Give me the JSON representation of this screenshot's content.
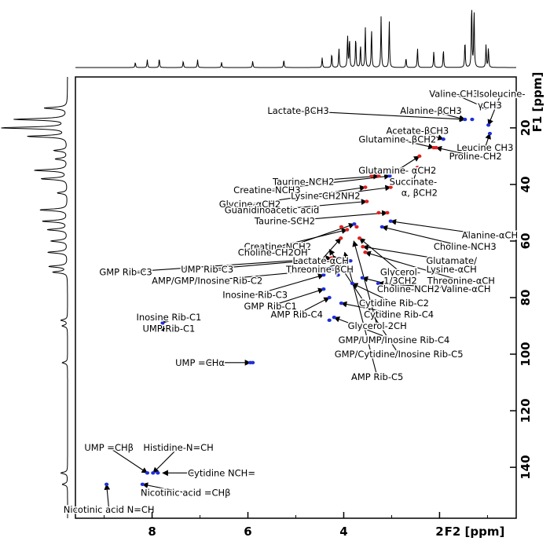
{
  "chart_data": {
    "type": "scatter",
    "subtype": "2D NMR HSQC spectrum",
    "title": "",
    "xlabel": "F2 [ppm]",
    "ylabel": "F1 [ppm]",
    "xlim": [
      9.6,
      0.4
    ],
    "ylim": [
      2,
      158
    ],
    "x_ticks": [
      {
        "value": 8,
        "label": "8"
      },
      {
        "value": 6,
        "label": "6"
      },
      {
        "value": 4,
        "label": "4"
      },
      {
        "value": 2,
        "label": "2"
      }
    ],
    "y_ticks": [
      {
        "value": 20,
        "label": "20"
      },
      {
        "value": 40,
        "label": "40"
      },
      {
        "value": 60,
        "label": "60"
      },
      {
        "value": 80,
        "label": "80"
      },
      {
        "value": 100,
        "label": "100"
      },
      {
        "value": 120,
        "label": "120"
      },
      {
        "value": 140,
        "label": "140"
      }
    ],
    "grid": false,
    "legend": "none",
    "colors": {
      "positive": "#1f2fd6",
      "negative": "#e02020",
      "axis": "#000000",
      "projection": "#000000"
    },
    "peaks": [
      {
        "x": 1.47,
        "y": 17,
        "sign": "positive"
      },
      {
        "x": 1.32,
        "y": 17,
        "sign": "positive"
      },
      {
        "x": 1.03,
        "y": 13,
        "sign": "positive"
      },
      {
        "x": 0.98,
        "y": 19,
        "sign": "positive"
      },
      {
        "x": 0.95,
        "y": 22,
        "sign": "positive"
      },
      {
        "x": 1.92,
        "y": 24,
        "sign": "positive"
      },
      {
        "x": 2.12,
        "y": 27,
        "sign": "negative"
      },
      {
        "x": 2.07,
        "y": 27,
        "sign": "negative"
      },
      {
        "x": 2.42,
        "y": 30,
        "sign": "negative"
      },
      {
        "x": 2.46,
        "y": 34,
        "sign": "negative"
      },
      {
        "x": 3.04,
        "y": 37,
        "sign": "positive"
      },
      {
        "x": 3.42,
        "y": 37,
        "sign": "negative"
      },
      {
        "x": 3.27,
        "y": 37,
        "sign": "negative"
      },
      {
        "x": 3.02,
        "y": 41,
        "sign": "negative"
      },
      {
        "x": 3.55,
        "y": 41,
        "sign": "negative"
      },
      {
        "x": 3.52,
        "y": 46,
        "sign": "negative"
      },
      {
        "x": 3.27,
        "y": 50,
        "sign": "negative"
      },
      {
        "x": 3.09,
        "y": 50,
        "sign": "negative"
      },
      {
        "x": 3.02,
        "y": 53,
        "sign": "positive"
      },
      {
        "x": 3.2,
        "y": 55,
        "sign": "positive"
      },
      {
        "x": 3.78,
        "y": 54,
        "sign": "positive"
      },
      {
        "x": 3.93,
        "y": 56,
        "sign": "negative"
      },
      {
        "x": 4.05,
        "y": 55,
        "sign": "negative"
      },
      {
        "x": 3.73,
        "y": 55,
        "sign": "negative"
      },
      {
        "x": 4.06,
        "y": 59,
        "sign": "negative"
      },
      {
        "x": 3.67,
        "y": 59,
        "sign": "negative"
      },
      {
        "x": 3.6,
        "y": 62,
        "sign": "negative"
      },
      {
        "x": 3.55,
        "y": 64,
        "sign": "negative"
      },
      {
        "x": 4.11,
        "y": 66,
        "sign": "positive"
      },
      {
        "x": 4.26,
        "y": 66,
        "sign": "negative"
      },
      {
        "x": 3.86,
        "y": 67,
        "sign": "positive"
      },
      {
        "x": 4.26,
        "y": 70,
        "sign": "positive"
      },
      {
        "x": 4.18,
        "y": 70,
        "sign": "positive"
      },
      {
        "x": 4.42,
        "y": 72,
        "sign": "positive"
      },
      {
        "x": 4.12,
        "y": 72,
        "sign": "positive"
      },
      {
        "x": 3.61,
        "y": 73,
        "sign": "positive"
      },
      {
        "x": 3.28,
        "y": 75,
        "sign": "positive"
      },
      {
        "x": 3.82,
        "y": 75,
        "sign": "positive"
      },
      {
        "x": 4.42,
        "y": 77,
        "sign": "positive"
      },
      {
        "x": 4.3,
        "y": 80,
        "sign": "positive"
      },
      {
        "x": 4.05,
        "y": 82,
        "sign": "positive"
      },
      {
        "x": 4.2,
        "y": 87,
        "sign": "positive"
      },
      {
        "x": 4.3,
        "y": 88,
        "sign": "positive"
      },
      {
        "x": 7.78,
        "y": 89,
        "sign": "positive"
      },
      {
        "x": 7.86,
        "y": 91,
        "sign": "positive"
      },
      {
        "x": 5.95,
        "y": 103,
        "sign": "positive"
      },
      {
        "x": 5.9,
        "y": 103,
        "sign": "positive"
      },
      {
        "x": 8.1,
        "y": 142,
        "sign": "positive"
      },
      {
        "x": 7.98,
        "y": 142,
        "sign": "positive"
      },
      {
        "x": 7.88,
        "y": 142,
        "sign": "positive"
      },
      {
        "x": 8.2,
        "y": 146,
        "sign": "positive"
      },
      {
        "x": 8.95,
        "y": 146,
        "sign": "positive"
      }
    ],
    "annotations": [
      {
        "text": "Valine-CH3",
        "tx": 1.7,
        "ty": 8,
        "ax": 1.03,
        "ay": 13
      },
      {
        "text": "Isoleucine-",
        "tx": 0.72,
        "ty": 8,
        "ax": 0.98,
        "ay": 19
      },
      {
        "text": "γCH3",
        "tx": 0.95,
        "ty": 12
      },
      {
        "text": "Lactate-βCH3",
        "tx": 4.95,
        "ty": 14,
        "ax": 1.47,
        "ay": 17
      },
      {
        "text": "Alanine-βCH3",
        "tx": 2.18,
        "ty": 14,
        "ax": 1.47,
        "ay": 17
      },
      {
        "text": "Acetate-βCH3",
        "tx": 2.46,
        "ty": 21,
        "ax": 1.92,
        "ay": 24
      },
      {
        "text": "Glutamine- βCH2",
        "tx": 2.88,
        "ty": 24,
        "ax": 2.12,
        "ay": 27
      },
      {
        "text": "Leucine CH3",
        "tx": 1.05,
        "ty": 27,
        "ax": 0.95,
        "ay": 22
      },
      {
        "text": "Proline-CH2",
        "tx": 1.25,
        "ty": 30,
        "ax": 2.07,
        "ay": 27
      },
      {
        "text": "Glutamine- αCH2",
        "tx": 2.88,
        "ty": 35,
        "ax": 2.42,
        "ay": 30
      },
      {
        "text": "Taurine-NCH2",
        "tx": 4.84,
        "ty": 39,
        "ax": 3.27,
        "ay": 37
      },
      {
        "text": "Succinate-",
        "tx": 2.55,
        "ty": 39,
        "ax": 2.46,
        "ay": 34
      },
      {
        "text": "Creatine-NCH3",
        "tx": 5.6,
        "ty": 42,
        "ax": 3.04,
        "ay": 37
      },
      {
        "text": "α, βCH2",
        "tx": 2.42,
        "ty": 43
      },
      {
        "text": "Lysine-CH2NH2",
        "tx": 4.38,
        "ty": 44,
        "ax": 3.02,
        "ay": 41
      },
      {
        "text": "Glycine-αCH2",
        "tx": 5.96,
        "ty": 47,
        "ax": 3.55,
        "ay": 41
      },
      {
        "text": "Guanidinoacetic acid",
        "tx": 5.5,
        "ty": 49,
        "ax": 3.52,
        "ay": 46
      },
      {
        "text": "Taurine-SCH2",
        "tx": 5.23,
        "ty": 53,
        "ax": 3.09,
        "ay": 50
      },
      {
        "text": "Alanine-αCH",
        "tx": 0.95,
        "ty": 58,
        "ax": 3.02,
        "ay": 53
      },
      {
        "text": "Creatine-NCH2",
        "tx": 5.38,
        "ty": 62,
        "ax": 3.93,
        "ay": 56
      },
      {
        "text": "Choline-NCH3",
        "tx": 1.47,
        "ty": 62,
        "ax": 3.2,
        "ay": 55
      },
      {
        "text": "Choline-CH2OH",
        "tx": 5.48,
        "ty": 64,
        "ax": 3.78,
        "ay": 54
      },
      {
        "text": "Lactate-αCH",
        "tx": 4.48,
        "ty": 67,
        "ax": 4.06,
        "ay": 59
      },
      {
        "text": "Glutamate/",
        "tx": 1.75,
        "ty": 67,
        "ax": 3.6,
        "ay": 62
      },
      {
        "text": "UMP Rib-C3",
        "tx": 6.85,
        "ty": 70,
        "ax": 4.11,
        "ay": 66
      },
      {
        "text": "Threonine-βCH",
        "tx": 4.5,
        "ty": 70,
        "ax": 3.86,
        "ay": 67
      },
      {
        "text": "Lysine-αCH",
        "tx": 1.75,
        "ty": 70
      },
      {
        "text": "GMP Rib-C3",
        "tx": 8.55,
        "ty": 71,
        "ax": 4.26,
        "ay": 66
      },
      {
        "text": "Glycerol-",
        "tx": 2.82,
        "ty": 71,
        "ax": 3.67,
        "ay": 59
      },
      {
        "text": "AMP/GMP/Inosine Rib-C2",
        "tx": 6.85,
        "ty": 74,
        "ax": 4.26,
        "ay": 70
      },
      {
        "text": "1/3CH2",
        "tx": 2.82,
        "ty": 74
      },
      {
        "text": "Threonine-αCH",
        "tx": 1.55,
        "ty": 74,
        "ax": 3.55,
        "ay": 64
      },
      {
        "text": "Choline-NCH2",
        "tx": 2.65,
        "ty": 77,
        "ax": 3.61,
        "ay": 73
      },
      {
        "text": "Valine-αCH",
        "tx": 1.45,
        "ty": 77,
        "ax": 3.28,
        "ay": 75
      },
      {
        "text": "Inosine Rib-C3",
        "tx": 5.85,
        "ty": 79,
        "ax": 4.42,
        "ay": 72
      },
      {
        "text": "GMP Rib-C1",
        "tx": 5.53,
        "ty": 83,
        "ax": 4.42,
        "ay": 77
      },
      {
        "text": "Cytidine Rib-C2",
        "tx": 2.95,
        "ty": 82,
        "ax": 3.82,
        "ay": 75
      },
      {
        "text": "AMP Rib-C4",
        "tx": 4.98,
        "ty": 86,
        "ax": 4.3,
        "ay": 80
      },
      {
        "text": "Cytidine Rib-C4",
        "tx": 2.85,
        "ty": 86,
        "ax": 4.05,
        "ay": 82
      },
      {
        "text": "Inosine Rib-C1",
        "tx": 7.65,
        "ty": 87,
        "ax": 7.78,
        "ay": 89
      },
      {
        "text": "Glycerol-2CH",
        "tx": 3.3,
        "ty": 90,
        "ax": 3.79,
        "ay": 60
      },
      {
        "text": "UMP Rib-C1",
        "tx": 7.65,
        "ty": 91,
        "ax": 7.86,
        "ay": 91
      },
      {
        "text": "GMP/UMP/Inosine Rib-C4",
        "tx": 2.95,
        "ty": 95,
        "ax": 4.2,
        "ay": 87
      },
      {
        "text": "GMP/Cytidine/Inosine Rib-C5",
        "tx": 2.85,
        "ty": 100,
        "ax": 4.3,
        "ay": 63
      },
      {
        "text": "UMP =CHα",
        "tx": 7.0,
        "ty": 103,
        "ax": 5.95,
        "ay": 103
      },
      {
        "text": "AMP Rib-C5",
        "tx": 3.3,
        "ty": 108,
        "ax": 3.98,
        "ay": 64
      },
      {
        "text": "UMP =CHβ",
        "tx": 8.9,
        "ty": 133,
        "ax": 8.1,
        "ay": 142
      },
      {
        "text": "Histidine-N=CH",
        "tx": 7.45,
        "ty": 133,
        "ax": 7.98,
        "ay": 142
      },
      {
        "text": "Cytidine NCH=",
        "tx": 6.55,
        "ty": 142,
        "ax": 7.78,
        "ay": 142
      },
      {
        "text": "Nicotinic acid =CHβ",
        "tx": 7.3,
        "ty": 149,
        "ax": 8.2,
        "ay": 146
      },
      {
        "text": "Nicotinic acid N=CH",
        "tx": 8.9,
        "ty": 155,
        "ax": 8.95,
        "ay": 146
      }
    ],
    "projection_f2_peaks": [
      {
        "x": 1.33,
        "h": 1.0
      },
      {
        "x": 1.28,
        "h": 0.9
      },
      {
        "x": 3.22,
        "h": 0.78
      },
      {
        "x": 3.05,
        "h": 0.72
      },
      {
        "x": 3.55,
        "h": 0.62
      },
      {
        "x": 3.42,
        "h": 0.6
      },
      {
        "x": 3.92,
        "h": 0.5
      },
      {
        "x": 3.75,
        "h": 0.48
      },
      {
        "x": 3.88,
        "h": 0.45
      },
      {
        "x": 4.1,
        "h": 0.3
      },
      {
        "x": 3.65,
        "h": 0.35
      },
      {
        "x": 2.46,
        "h": 0.3
      },
      {
        "x": 2.12,
        "h": 0.25
      },
      {
        "x": 1.92,
        "h": 0.28
      },
      {
        "x": 1.47,
        "h": 0.42
      },
      {
        "x": 1.03,
        "h": 0.35
      },
      {
        "x": 0.98,
        "h": 0.3
      },
      {
        "x": 4.25,
        "h": 0.22
      },
      {
        "x": 4.45,
        "h": 0.15
      },
      {
        "x": 5.25,
        "h": 0.12
      },
      {
        "x": 5.9,
        "h": 0.1
      },
      {
        "x": 6.55,
        "h": 0.08
      },
      {
        "x": 7.05,
        "h": 0.12
      },
      {
        "x": 7.35,
        "h": 0.1
      },
      {
        "x": 7.85,
        "h": 0.14
      },
      {
        "x": 8.1,
        "h": 0.12
      },
      {
        "x": 8.35,
        "h": 0.08
      },
      {
        "x": 2.7,
        "h": 0.15
      }
    ],
    "projection_f1_peaks": [
      {
        "y": 20,
        "h": 1.0
      },
      {
        "y": 17,
        "h": 0.8
      },
      {
        "y": 23,
        "h": 0.6
      },
      {
        "y": 13,
        "h": 0.35
      },
      {
        "y": 35,
        "h": 0.5
      },
      {
        "y": 38,
        "h": 0.4
      },
      {
        "y": 49,
        "h": 0.42
      },
      {
        "y": 53,
        "h": 0.38
      },
      {
        "y": 56,
        "h": 0.3
      },
      {
        "y": 60,
        "h": 0.25
      },
      {
        "y": 64,
        "h": 0.3
      },
      {
        "y": 69,
        "h": 0.28
      },
      {
        "y": 71,
        "h": 0.22
      },
      {
        "y": 28,
        "h": 0.2
      },
      {
        "y": 31,
        "h": 0.18
      },
      {
        "y": 43,
        "h": 0.15
      },
      {
        "y": 88,
        "h": 0.1
      },
      {
        "y": 90,
        "h": 0.08
      },
      {
        "y": 103,
        "h": 0.08
      },
      {
        "y": 142,
        "h": 0.1
      },
      {
        "y": 146,
        "h": 0.08
      }
    ]
  }
}
